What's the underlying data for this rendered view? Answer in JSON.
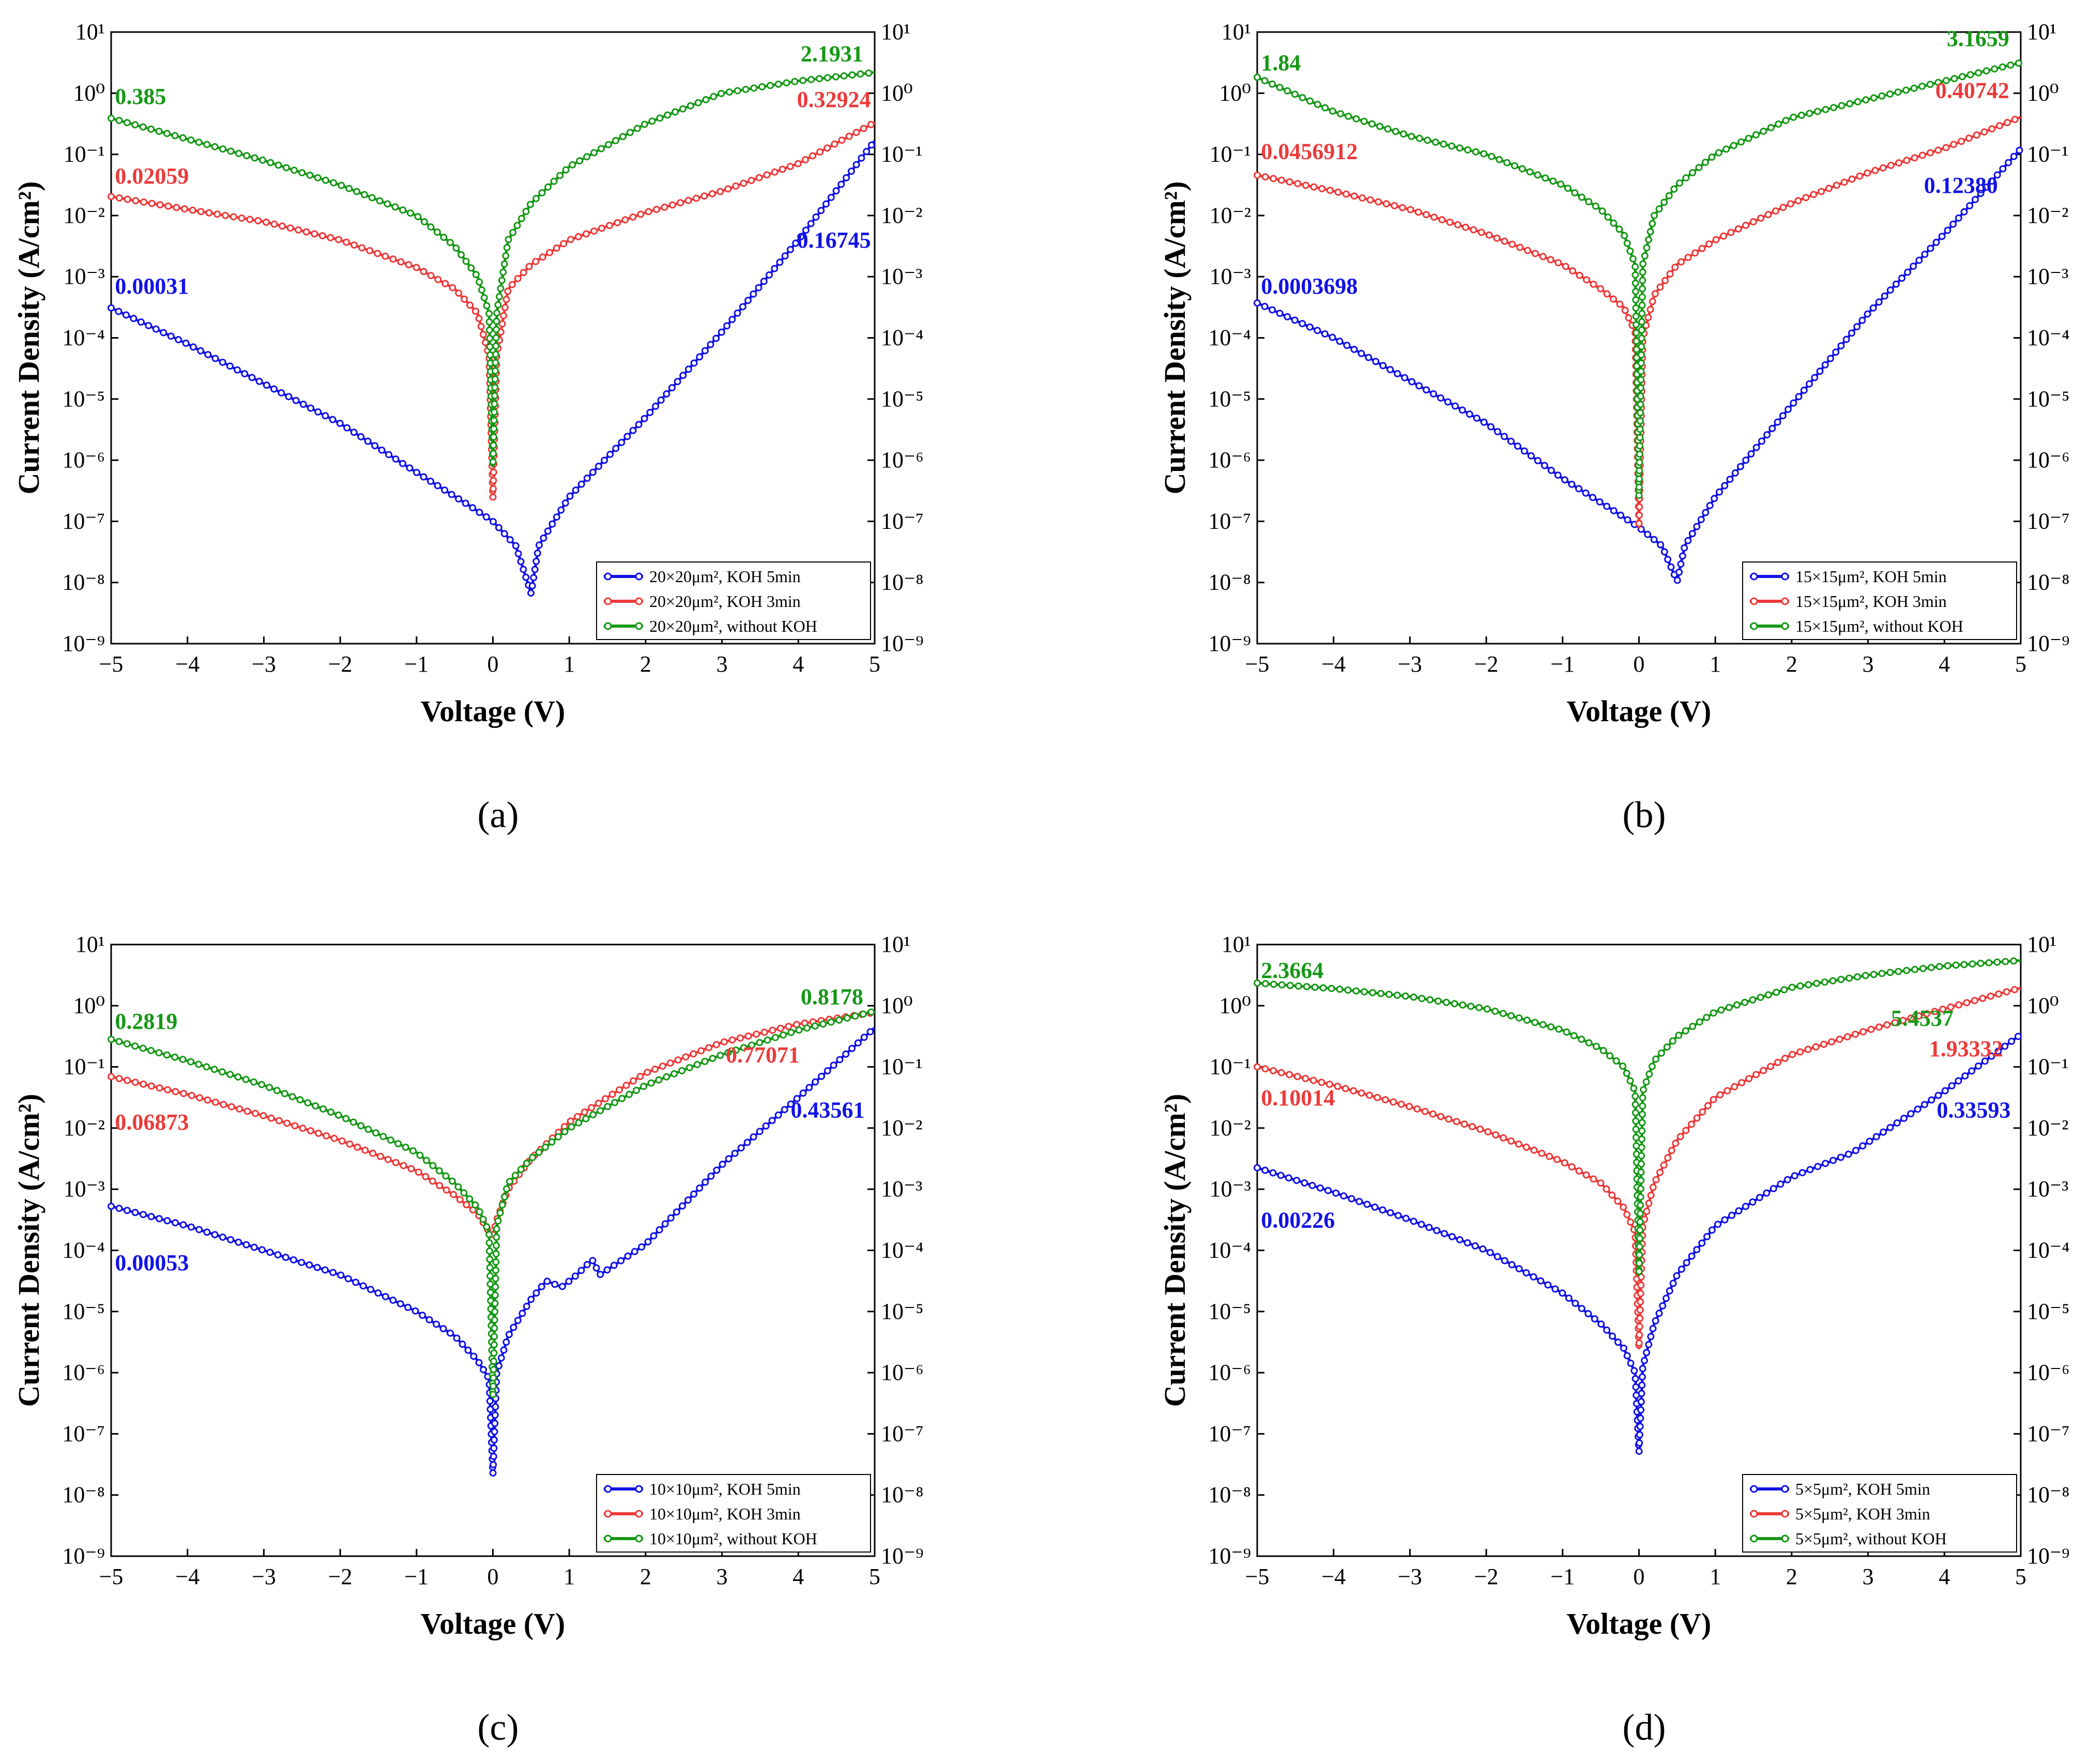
{
  "chart_data": [
    {
      "type": "line",
      "panel_label": "(a)",
      "xlabel": "Voltage (V)",
      "ylabel": "Current Density (A/cm²)",
      "yscale": "log",
      "xlim": [
        -5,
        5
      ],
      "ylim_exp": [
        -9,
        1
      ],
      "xticks": [
        "−5",
        "−4",
        "−3",
        "−2",
        "−1",
        "0",
        "1",
        "2",
        "3",
        "4",
        "5"
      ],
      "yticks": [
        "10⁻⁹",
        "10⁻⁸",
        "10⁻⁷",
        "10⁻⁶",
        "10⁻⁵",
        "10⁻⁴",
        "10⁻³",
        "10⁻²",
        "10⁻¹",
        "10⁰",
        "10¹"
      ],
      "legend_position": "bottom-right",
      "series": [
        {
          "name": "20×20μm², KOH 5min",
          "color": "#1212e6",
          "x": [
            -5,
            -4,
            -3,
            -2,
            -1,
            -0.3,
            0,
            0.3,
            0.5,
            0.6,
            1,
            2,
            3,
            4,
            5
          ],
          "log10_y": [
            -3.51,
            -4.1,
            -4.75,
            -5.4,
            -6.2,
            -6.75,
            -7.0,
            -7.4,
            -8.18,
            -7.4,
            -6.6,
            -5.3,
            -3.9,
            -2.4,
            -0.78
          ]
        },
        {
          "name": "20×20μm², KOH 3min",
          "color": "#ec3a3a",
          "x": [
            -5,
            -4,
            -3,
            -2,
            -1,
            -0.5,
            -0.2,
            -0.05,
            0,
            0.05,
            0.2,
            0.5,
            1,
            2,
            3,
            4,
            5
          ],
          "log10_y": [
            -1.69,
            -1.9,
            -2.1,
            -2.4,
            -2.85,
            -3.2,
            -3.6,
            -4.3,
            -6.62,
            -4.3,
            -3.2,
            -2.8,
            -2.4,
            -1.95,
            -1.6,
            -1.15,
            -0.48
          ]
        },
        {
          "name": "20×20μm², without KOH",
          "color": "#169816",
          "x": [
            -5,
            -4,
            -3,
            -2,
            -1,
            -0.5,
            -0.2,
            -0.05,
            0,
            0.05,
            0.2,
            0.5,
            1,
            2,
            3,
            4,
            5
          ],
          "log10_y": [
            -0.41,
            -0.75,
            -1.1,
            -1.5,
            -2.0,
            -2.5,
            -3.0,
            -3.6,
            -6.1,
            -3.6,
            -2.4,
            -1.8,
            -1.2,
            -0.5,
            0.0,
            0.2,
            0.34
          ]
        }
      ],
      "annotations": [
        {
          "text": "0.385",
          "color": "#169816",
          "x": -4.95,
          "log10_y": -0.05,
          "anchor": "start"
        },
        {
          "text": "0.02059",
          "color": "#ec3a3a",
          "x": -4.95,
          "log10_y": -1.35,
          "anchor": "start"
        },
        {
          "text": "0.00031",
          "color": "#1212e6",
          "x": -4.95,
          "log10_y": -3.15,
          "anchor": "start"
        },
        {
          "text": "2.1931",
          "color": "#169816",
          "x": 4.85,
          "log10_y": 0.65,
          "anchor": "end"
        },
        {
          "text": "0.32924",
          "color": "#ec3a3a",
          "x": 4.95,
          "log10_y": -0.1,
          "anchor": "end"
        },
        {
          "text": "0.16745",
          "color": "#1212e6",
          "x": 4.95,
          "log10_y": -2.4,
          "anchor": "end"
        }
      ]
    },
    {
      "type": "line",
      "panel_label": "(b)",
      "xlabel": "Voltage (V)",
      "ylabel": "Current Density (A/cm²)",
      "yscale": "log",
      "xlim": [
        -5,
        5
      ],
      "ylim_exp": [
        -9,
        1
      ],
      "xticks": [
        "−5",
        "−4",
        "−3",
        "−2",
        "−1",
        "0",
        "1",
        "2",
        "3",
        "4",
        "5"
      ],
      "yticks": [
        "10⁻⁹",
        "10⁻⁸",
        "10⁻⁷",
        "10⁻⁶",
        "10⁻⁵",
        "10⁻⁴",
        "10⁻³",
        "10⁻²",
        "10⁻¹",
        "10⁰",
        "10¹"
      ],
      "legend_position": "bottom-right",
      "series": [
        {
          "name": "15×15μm², KOH 5min",
          "color": "#1212e6",
          "x": [
            -5,
            -4,
            -3,
            -2,
            -1,
            -0.3,
            0,
            0.3,
            0.5,
            0.6,
            1,
            2,
            3,
            4,
            5
          ],
          "log10_y": [
            -3.43,
            -4.0,
            -4.7,
            -5.4,
            -6.3,
            -6.85,
            -7.1,
            -7.4,
            -7.98,
            -7.4,
            -6.6,
            -5.1,
            -3.6,
            -2.3,
            -0.91
          ]
        },
        {
          "name": "15×15μm², KOH 3min",
          "color": "#ec3a3a",
          "x": [
            -5,
            -4,
            -3,
            -2,
            -1,
            -0.5,
            -0.2,
            -0.05,
            0,
            0.05,
            0.2,
            0.5,
            1,
            2,
            3,
            4,
            5
          ],
          "log10_y": [
            -1.34,
            -1.6,
            -1.9,
            -2.3,
            -2.8,
            -3.2,
            -3.5,
            -3.9,
            -7.1,
            -4.0,
            -3.3,
            -2.8,
            -2.4,
            -1.8,
            -1.3,
            -0.9,
            -0.39
          ]
        },
        {
          "name": "15×15μm², without KOH",
          "color": "#169816",
          "x": [
            -5,
            -4,
            -3,
            -2,
            -1,
            -0.5,
            -0.2,
            -0.05,
            0,
            0.05,
            0.2,
            0.5,
            1,
            2,
            3,
            4,
            5
          ],
          "log10_y": [
            0.26,
            -0.3,
            -0.7,
            -1.0,
            -1.5,
            -1.9,
            -2.3,
            -2.8,
            -6.6,
            -2.8,
            -2.0,
            -1.5,
            -1.0,
            -0.4,
            -0.1,
            0.2,
            0.5
          ]
        }
      ],
      "annotations": [
        {
          "text": "1.84",
          "color": "#169816",
          "x": -4.95,
          "log10_y": 0.5,
          "anchor": "start"
        },
        {
          "text": "0.0456912",
          "color": "#ec3a3a",
          "x": -4.95,
          "log10_y": -0.95,
          "anchor": "start"
        },
        {
          "text": "0.0003698",
          "color": "#1212e6",
          "x": -4.95,
          "log10_y": -3.15,
          "anchor": "start"
        },
        {
          "text": "3.1659",
          "color": "#169816",
          "x": 4.85,
          "log10_y": 0.9,
          "anchor": "end"
        },
        {
          "text": "0.40742",
          "color": "#ec3a3a",
          "x": 4.85,
          "log10_y": 0.05,
          "anchor": "end"
        },
        {
          "text": "0.12380",
          "color": "#1212e6",
          "x": 4.7,
          "log10_y": -1.5,
          "anchor": "end"
        }
      ]
    },
    {
      "type": "line",
      "panel_label": "(c)",
      "xlabel": "Voltage (V)",
      "ylabel": "Current Density (A/cm²)",
      "yscale": "log",
      "xlim": [
        -5,
        5
      ],
      "ylim_exp": [
        -9,
        1
      ],
      "xticks": [
        "−5",
        "−4",
        "−3",
        "−2",
        "−1",
        "0",
        "1",
        "2",
        "3",
        "4",
        "5"
      ],
      "yticks": [
        "10⁻⁹",
        "10⁻⁸",
        "10⁻⁷",
        "10⁻⁶",
        "10⁻⁵",
        "10⁻⁴",
        "10⁻³",
        "10⁻²",
        "10⁻¹",
        "10⁰",
        "10¹"
      ],
      "legend_position": "bottom-right",
      "series": [
        {
          "name": "10×10μm², KOH 5min",
          "color": "#1212e6",
          "x": [
            -5,
            -4,
            -3,
            -2,
            -1,
            -0.5,
            -0.2,
            -0.05,
            0,
            0.05,
            0.2,
            0.5,
            0.7,
            0.9,
            1.1,
            1.3,
            1.4,
            2,
            3,
            4,
            5
          ],
          "log10_y": [
            -3.28,
            -3.6,
            -4.0,
            -4.4,
            -5.0,
            -5.4,
            -5.8,
            -6.1,
            -7.66,
            -6.0,
            -5.4,
            -4.8,
            -4.5,
            -4.6,
            -4.4,
            -4.15,
            -4.4,
            -3.9,
            -2.6,
            -1.5,
            -0.36
          ]
        },
        {
          "name": "10×10μm², KOH 3min",
          "color": "#ec3a3a",
          "x": [
            -5,
            -4,
            -3,
            -2,
            -1,
            -0.5,
            -0.2,
            -0.05,
            0,
            0.05,
            0.2,
            0.5,
            1,
            2,
            3,
            4,
            5
          ],
          "log10_y": [
            -1.16,
            -1.45,
            -1.8,
            -2.2,
            -2.7,
            -3.1,
            -3.4,
            -3.7,
            -3.75,
            -3.5,
            -3.0,
            -2.5,
            -1.9,
            -1.1,
            -0.6,
            -0.3,
            -0.11
          ]
        },
        {
          "name": "10×10μm², without KOH",
          "color": "#169816",
          "x": [
            -5,
            -4,
            -3,
            -2,
            -1,
            -0.5,
            -0.2,
            -0.05,
            0,
            0.05,
            0.2,
            0.5,
            1,
            2,
            3,
            4,
            5
          ],
          "log10_y": [
            -0.55,
            -0.9,
            -1.3,
            -1.8,
            -2.4,
            -2.9,
            -3.3,
            -3.7,
            -6.4,
            -3.6,
            -2.9,
            -2.5,
            -2.0,
            -1.3,
            -0.8,
            -0.4,
            -0.09
          ]
        }
      ],
      "annotations": [
        {
          "text": "0.2819",
          "color": "#169816",
          "x": -4.95,
          "log10_y": -0.25,
          "anchor": "start"
        },
        {
          "text": "0.06873",
          "color": "#ec3a3a",
          "x": -4.95,
          "log10_y": -1.9,
          "anchor": "start"
        },
        {
          "text": "0.00053",
          "color": "#1212e6",
          "x": -4.95,
          "log10_y": -4.2,
          "anchor": "start"
        },
        {
          "text": "0.8178",
          "color": "#169816",
          "x": 4.85,
          "log10_y": 0.15,
          "anchor": "end"
        },
        {
          "text": "0.77071",
          "color": "#ec3a3a",
          "x": 3.05,
          "log10_y": -0.8,
          "anchor": "start"
        },
        {
          "text": "0.43561",
          "color": "#1212e6",
          "x": 3.9,
          "log10_y": -1.7,
          "anchor": "start"
        }
      ]
    },
    {
      "type": "line",
      "panel_label": "(d)",
      "xlabel": "Voltage (V)",
      "ylabel": "Current Density (A/cm²)",
      "yscale": "log",
      "xlim": [
        -5,
        5
      ],
      "ylim_exp": [
        -9,
        1
      ],
      "xticks": [
        "−5",
        "−4",
        "−3",
        "−2",
        "−1",
        "0",
        "1",
        "2",
        "3",
        "4",
        "5"
      ],
      "yticks": [
        "10⁻⁹",
        "10⁻⁸",
        "10⁻⁷",
        "10⁻⁶",
        "10⁻⁵",
        "10⁻⁴",
        "10⁻³",
        "10⁻²",
        "10⁻¹",
        "10⁰",
        "10¹"
      ],
      "legend_position": "bottom-right",
      "series": [
        {
          "name": "5×5μm², KOH 5min",
          "color": "#1212e6",
          "x": [
            -5,
            -4,
            -3,
            -2,
            -1,
            -0.5,
            -0.2,
            -0.05,
            0,
            0.05,
            0.2,
            0.5,
            1,
            2,
            2.8,
            4,
            5
          ],
          "log10_y": [
            -2.65,
            -3.05,
            -3.5,
            -4.0,
            -4.7,
            -5.2,
            -5.6,
            -6.0,
            -7.3,
            -5.9,
            -5.2,
            -4.4,
            -3.6,
            -2.8,
            -2.4,
            -1.4,
            -0.47
          ]
        },
        {
          "name": "5×5μm², KOH 3min",
          "color": "#ec3a3a",
          "x": [
            -5,
            -4,
            -3,
            -2,
            -1,
            -0.5,
            -0.2,
            -0.05,
            0,
            0.05,
            0.2,
            0.5,
            1,
            2,
            3,
            4,
            5
          ],
          "log10_y": [
            -1.0,
            -1.3,
            -1.65,
            -2.05,
            -2.55,
            -2.9,
            -3.3,
            -3.7,
            -5.6,
            -3.6,
            -2.9,
            -2.2,
            -1.5,
            -0.8,
            -0.4,
            -0.05,
            0.29
          ]
        },
        {
          "name": "5×5μm², without KOH",
          "color": "#169816",
          "x": [
            -5,
            -4,
            -3,
            -2,
            -1,
            -0.5,
            -0.2,
            -0.05,
            0,
            0.05,
            0.2,
            0.5,
            1,
            2,
            3,
            4,
            5
          ],
          "log10_y": [
            0.37,
            0.28,
            0.15,
            -0.05,
            -0.4,
            -0.7,
            -1.0,
            -1.4,
            -4.4,
            -1.4,
            -0.9,
            -0.5,
            -0.1,
            0.3,
            0.5,
            0.65,
            0.74
          ]
        }
      ],
      "annotations": [
        {
          "text": "2.3664",
          "color": "#169816",
          "x": -4.95,
          "log10_y": 0.58,
          "anchor": "start"
        },
        {
          "text": "0.10014",
          "color": "#ec3a3a",
          "x": -4.95,
          "log10_y": -1.5,
          "anchor": "start"
        },
        {
          "text": "0.00226",
          "color": "#1212e6",
          "x": -4.95,
          "log10_y": -3.5,
          "anchor": "start"
        },
        {
          "text": "5.4537",
          "color": "#169816",
          "x": 3.3,
          "log10_y": -0.2,
          "anchor": "start"
        },
        {
          "text": "1.93332",
          "color": "#ec3a3a",
          "x": 3.8,
          "log10_y": -0.7,
          "anchor": "start"
        },
        {
          "text": "0.33593",
          "color": "#1212e6",
          "x": 3.9,
          "log10_y": -1.7,
          "anchor": "start"
        }
      ]
    }
  ]
}
